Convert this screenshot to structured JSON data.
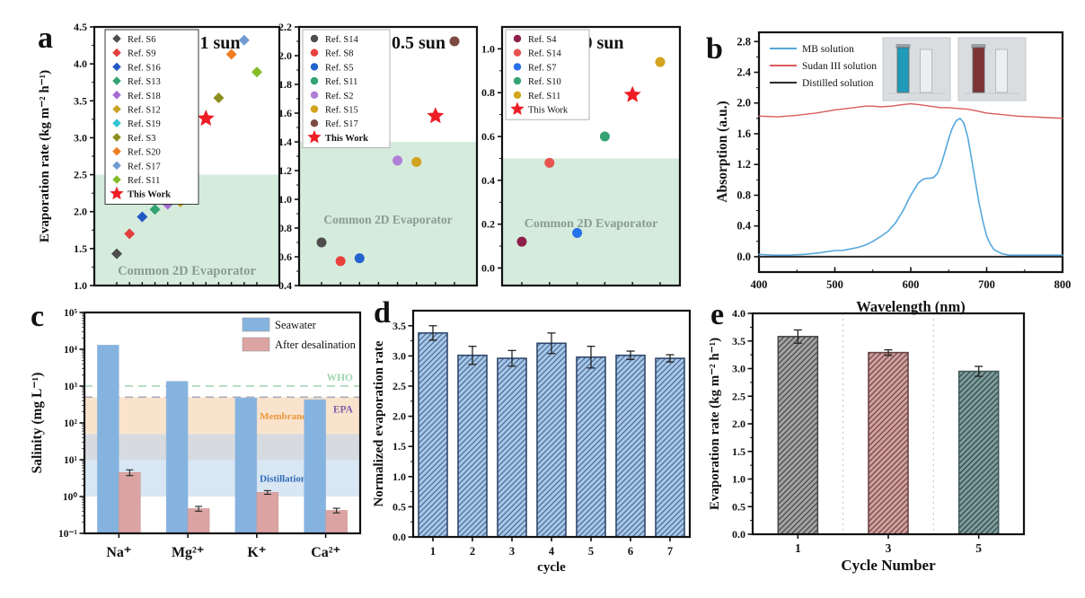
{
  "figure": {
    "background": "#ffffff",
    "panels": {
      "a": "a",
      "b": "b",
      "c": "c",
      "d": "d",
      "e": "e"
    }
  },
  "chart_data": [
    {
      "id": "a1",
      "type": "scatter",
      "title": "1 sun",
      "ylabel": "Evaporation rate (kg m⁻² h⁻¹)",
      "ylim": [
        1.0,
        4.5
      ],
      "yticks": [
        1.0,
        1.5,
        2.0,
        2.5,
        3.0,
        3.5,
        4.0,
        4.5
      ],
      "marker": "diamond",
      "region": {
        "label": "Common 2D Evaporator",
        "top": 2.5,
        "fill": "#d5ecdd",
        "label_color": "#8b9b93"
      },
      "legend": [
        {
          "name": "Ref. S6",
          "color": "#4d4d4d"
        },
        {
          "name": "Ref. S9",
          "color": "#e2403f"
        },
        {
          "name": "Ref. S16",
          "color": "#2159c4"
        },
        {
          "name": "Ref. S13",
          "color": "#33a373"
        },
        {
          "name": "Ref. S18",
          "color": "#a66bd4"
        },
        {
          "name": "Ref. S12",
          "color": "#c9a227"
        },
        {
          "name": "Ref. S19",
          "color": "#35c3d5"
        },
        {
          "name": "Ref. S3",
          "color": "#8e8f21"
        },
        {
          "name": "Ref. S20",
          "color": "#ef7d21"
        },
        {
          "name": "Ref. S17",
          "color": "#6f9ad2"
        },
        {
          "name": "Ref. S11",
          "color": "#84bc2a"
        },
        {
          "name": "This Work",
          "color": "#ee1c25",
          "marker": "star",
          "bold": true
        }
      ],
      "points": [
        {
          "name": "Ref. S6",
          "x": 1,
          "y": 1.43,
          "color": "#4d4d4d"
        },
        {
          "name": "Ref. S9",
          "x": 2,
          "y": 1.7,
          "color": "#e2403f"
        },
        {
          "name": "Ref. S16",
          "x": 3,
          "y": 1.93,
          "color": "#2159c4"
        },
        {
          "name": "Ref. S13",
          "x": 4,
          "y": 2.03,
          "color": "#33a373"
        },
        {
          "name": "Ref. S18",
          "x": 5,
          "y": 2.1,
          "color": "#a66bd4"
        },
        {
          "name": "Ref. S12",
          "x": 6,
          "y": 2.13,
          "color": "#c9a227"
        },
        {
          "name": "Ref. S19",
          "x": 7,
          "y": 2.86,
          "color": "#35c3d5"
        },
        {
          "name": "This Work",
          "x": 8,
          "y": 3.26,
          "color": "#ee1c25",
          "marker": "star"
        },
        {
          "name": "Ref. S3",
          "x": 9,
          "y": 3.54,
          "color": "#8e8f21"
        },
        {
          "name": "Ref. S20",
          "x": 10,
          "y": 4.13,
          "color": "#ef7d21"
        },
        {
          "name": "Ref. S17",
          "x": 11,
          "y": 4.32,
          "color": "#6f9ad2"
        },
        {
          "name": "Ref. S11",
          "x": 12,
          "y": 3.89,
          "color": "#84bc2a"
        }
      ]
    },
    {
      "id": "a2",
      "type": "scatter",
      "title": "0.5 sun",
      "ylabel": "",
      "ylim": [
        0.4,
        2.2
      ],
      "yticks": [
        0.4,
        0.6,
        0.8,
        1.0,
        1.2,
        1.4,
        1.6,
        1.8,
        2.0,
        2.2
      ],
      "marker": "circle",
      "region": {
        "label": "Common 2D Evaporator",
        "top": 1.4,
        "fill": "#d5ecdd",
        "label_color": "#8b9b93"
      },
      "legend": [
        {
          "name": "Ref. S14",
          "color": "#4d4d4d"
        },
        {
          "name": "Ref. S8",
          "color": "#e8413e"
        },
        {
          "name": "Ref. S5",
          "color": "#2362cf"
        },
        {
          "name": "Ref. S11",
          "color": "#33a373"
        },
        {
          "name": "Ref. S2",
          "color": "#b07fd8"
        },
        {
          "name": "Ref. S15",
          "color": "#d2a41f"
        },
        {
          "name": "Ref. S17",
          "color": "#7d4b43"
        },
        {
          "name": "This Work",
          "color": "#ee1c25",
          "marker": "star",
          "bold": true
        }
      ],
      "points": [
        {
          "name": "Ref. S14",
          "x": 1,
          "y": 0.7,
          "color": "#4d4d4d"
        },
        {
          "name": "Ref. S8",
          "x": 2,
          "y": 0.57,
          "color": "#e8413e"
        },
        {
          "name": "Ref. S5",
          "x": 3,
          "y": 0.59,
          "color": "#2362cf"
        },
        {
          "name": "Ref. S11",
          "x": 4,
          "y": 1.74,
          "color": "#33a373"
        },
        {
          "name": "Ref. S2",
          "x": 5,
          "y": 1.27,
          "color": "#b07fd8"
        },
        {
          "name": "Ref. S15",
          "x": 6,
          "y": 1.26,
          "color": "#d2a41f"
        },
        {
          "name": "This Work",
          "x": 7,
          "y": 1.58,
          "color": "#ee1c25",
          "marker": "star"
        },
        {
          "name": "Ref. S17",
          "x": 8,
          "y": 2.1,
          "color": "#7d4b43"
        }
      ]
    },
    {
      "id": "a3",
      "type": "scatter",
      "title": "0 sun",
      "ylabel": "",
      "ylim": [
        -0.08,
        1.1
      ],
      "yticks": [
        0.0,
        0.2,
        0.4,
        0.6,
        0.8,
        1.0
      ],
      "marker": "circle",
      "region": {
        "label": "Common 2D Evaporator",
        "top": 0.5,
        "fill": "#d5ecdd",
        "label_color": "#8b9b93"
      },
      "legend": [
        {
          "name": "Ref. S4",
          "color": "#8e1f4b"
        },
        {
          "name": "Ref. S14",
          "color": "#e8534f"
        },
        {
          "name": "Ref. S7",
          "color": "#2670e8"
        },
        {
          "name": "Ref. S10",
          "color": "#36a372"
        },
        {
          "name": "Ref. S11",
          "color": "#d2a41f"
        },
        {
          "name": "This Work",
          "color": "#ee1c25",
          "marker": "star",
          "bold": false
        }
      ],
      "points": [
        {
          "name": "Ref. S4",
          "x": 1,
          "y": 0.12,
          "color": "#8e1f4b"
        },
        {
          "name": "Ref. S14",
          "x": 2,
          "y": 0.48,
          "color": "#e8534f"
        },
        {
          "name": "Ref. S7",
          "x": 3,
          "y": 0.16,
          "color": "#2670e8"
        },
        {
          "name": "Ref. S10",
          "x": 4,
          "y": 0.6,
          "color": "#36a372"
        },
        {
          "name": "This Work",
          "x": 5,
          "y": 0.79,
          "color": "#ee1c25",
          "marker": "star"
        },
        {
          "name": "Ref. S11",
          "x": 6,
          "y": 0.94,
          "color": "#d2a41f"
        }
      ]
    },
    {
      "id": "b",
      "type": "line",
      "xlabel": "Wavelength (nm)",
      "ylabel": "Absorption (a.u.)",
      "xlim": [
        400,
        800
      ],
      "ylim": [
        -0.2,
        2.92
      ],
      "xticks": [
        400,
        500,
        600,
        700,
        800
      ],
      "yticks": [
        0.0,
        0.4,
        0.8,
        1.2,
        1.6,
        2.0,
        2.4,
        2.8
      ],
      "series": [
        {
          "name": "MB solution",
          "color": "#56a7dd",
          "width": 1.6,
          "x": [
            400,
            420,
            440,
            460,
            480,
            500,
            510,
            520,
            530,
            540,
            550,
            560,
            570,
            580,
            590,
            600,
            610,
            615,
            620,
            625,
            630,
            635,
            640,
            645,
            650,
            655,
            660,
            665,
            670,
            675,
            680,
            685,
            690,
            695,
            700,
            705,
            710,
            720,
            730,
            750,
            775,
            800
          ],
          "y": [
            0.03,
            0.02,
            0.02,
            0.03,
            0.05,
            0.08,
            0.08,
            0.1,
            0.12,
            0.15,
            0.2,
            0.26,
            0.33,
            0.44,
            0.6,
            0.8,
            0.96,
            1.0,
            1.02,
            1.02,
            1.03,
            1.08,
            1.2,
            1.36,
            1.54,
            1.68,
            1.77,
            1.8,
            1.74,
            1.56,
            1.28,
            0.99,
            0.7,
            0.46,
            0.27,
            0.16,
            0.09,
            0.04,
            0.02,
            0.02,
            0.02,
            0.02
          ]
        },
        {
          "name": "Sudan III solution",
          "color": "#d95b5b",
          "width": 1.4,
          "x": [
            400,
            425,
            450,
            475,
            500,
            525,
            540,
            550,
            560,
            575,
            590,
            600,
            610,
            625,
            640,
            650,
            660,
            675,
            690,
            700,
            720,
            740,
            760,
            780,
            800
          ],
          "y": [
            1.83,
            1.82,
            1.84,
            1.87,
            1.91,
            1.94,
            1.96,
            1.96,
            1.95,
            1.96,
            1.98,
            1.99,
            1.98,
            1.96,
            1.94,
            1.94,
            1.93,
            1.92,
            1.89,
            1.87,
            1.85,
            1.83,
            1.82,
            1.81,
            1.8
          ]
        },
        {
          "name": "Distilled solution",
          "color": "#2b2b2b",
          "width": 2.0,
          "x": [
            400,
            800
          ],
          "y": [
            0.0,
            0.0
          ]
        }
      ],
      "inset_photos": [
        {
          "solution_color": "#1f9ab8"
        },
        {
          "solution_color": "#7e3434"
        }
      ]
    },
    {
      "id": "c",
      "type": "bar-log",
      "ylabel": "Salinity (mg L⁻¹)",
      "categories": [
        "Na⁺",
        "Mg²⁺",
        "K⁺",
        "Ca²⁺"
      ],
      "log_range": [
        -1,
        5
      ],
      "ytick_exps": [
        -1,
        0,
        1,
        2,
        3,
        4,
        5
      ],
      "ytick_labels": [
        "10⁻¹",
        "10⁰",
        "10¹",
        "10²",
        "10³",
        "10⁴",
        "10⁵"
      ],
      "series": [
        {
          "name": "Seawater",
          "color": "#85b3e0",
          "values": [
            13000,
            1350,
            480,
            430
          ]
        },
        {
          "name": "After desalination",
          "color": "#dba4a2",
          "values": [
            4.5,
            0.47,
            1.3,
            0.42
          ],
          "errors": [
            0.8,
            0.07,
            0.15,
            0.06
          ]
        }
      ],
      "guides": [
        {
          "label": "WHO",
          "value": 1000,
          "color": "#9fd4af",
          "label_color": "#9fd4af",
          "label_dy": -6
        },
        {
          "label": "EPA",
          "value": 500,
          "color": "#a9adbb",
          "label_color": "#7b5ea7",
          "label_dy": 17
        }
      ],
      "bands": [
        {
          "label": "Membrane",
          "from": 50,
          "to": 500,
          "color": "#fae3cd",
          "label_color": "#e8973a",
          "label_x": 0.72
        },
        {
          "label": "",
          "from": 10,
          "to": 50,
          "color": "#d7dbe0",
          "label_color": "#888888",
          "label_x": 0.72
        },
        {
          "label": "Distillation",
          "from": 1,
          "to": 10,
          "color": "#d9e6f4",
          "label_color": "#2d6bb4",
          "label_x": 0.72
        }
      ]
    },
    {
      "id": "d",
      "type": "bar",
      "xlabel": "cycle",
      "ylabel": "Normalized evaporation rate",
      "categories": [
        "1",
        "2",
        "3",
        "4",
        "5",
        "6",
        "7"
      ],
      "values": [
        3.38,
        3.01,
        2.96,
        3.21,
        2.98,
        3.01,
        2.96
      ],
      "errors": [
        0.12,
        0.15,
        0.13,
        0.17,
        0.18,
        0.07,
        0.06
      ],
      "ylim": [
        0,
        3.75
      ],
      "yticks": [
        0.0,
        0.5,
        1.0,
        1.5,
        2.0,
        2.5,
        3.0,
        3.5
      ],
      "bars": [
        {
          "fill": "#a6c8e8",
          "hatch": "#46608c",
          "edge": "#30486b"
        }
      ]
    },
    {
      "id": "e",
      "type": "bar",
      "xlabel": "Cycle Number",
      "ylabel": "Evaporation rate (kg m⁻² h⁻¹)",
      "categories": [
        "1",
        "3",
        "5"
      ],
      "values": [
        3.58,
        3.29,
        2.95
      ],
      "errors": [
        0.12,
        0.05,
        0.09
      ],
      "ylim": [
        0,
        4.0
      ],
      "yticks": [
        0.0,
        0.5,
        1.0,
        1.5,
        2.0,
        2.5,
        3.0,
        3.5,
        4.0
      ],
      "vgrid": true,
      "bars": [
        {
          "fill": "#a2a2a2",
          "hatch": "#3c3c3c",
          "edge": "#4a4a4a"
        },
        {
          "fill": "#cfa0a0",
          "hatch": "#6a3838",
          "edge": "#6a4545"
        },
        {
          "fill": "#7d9c9c",
          "hatch": "#2a3d3d",
          "edge": "#445b5b"
        }
      ]
    }
  ]
}
